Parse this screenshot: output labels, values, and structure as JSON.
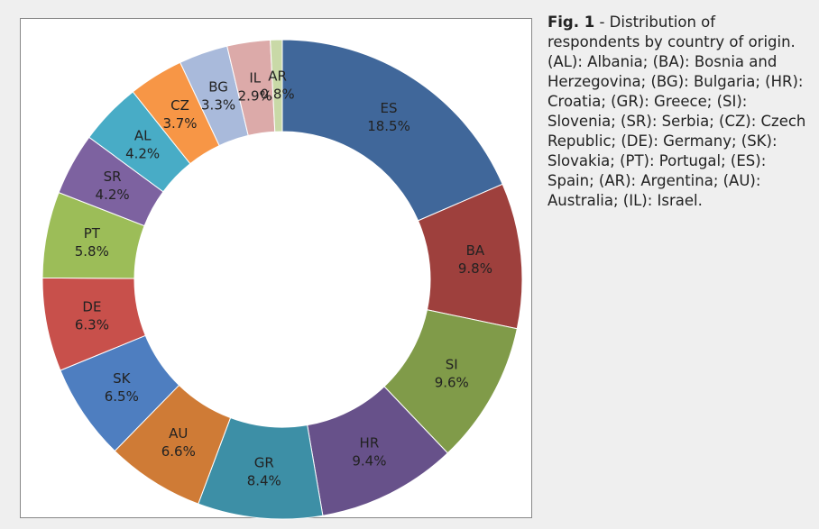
{
  "chart_data": {
    "type": "donut",
    "categories": [
      "ES",
      "BA",
      "SI",
      "HR",
      "GR",
      "AU",
      "SK",
      "DE",
      "PT",
      "SR",
      "AL",
      "CZ",
      "BG",
      "IL",
      "AR"
    ],
    "values": [
      18.5,
      9.8,
      9.6,
      9.4,
      8.4,
      6.6,
      6.5,
      6.3,
      5.8,
      4.2,
      4.2,
      3.7,
      3.3,
      2.9,
      0.8
    ],
    "value_labels": [
      "18.5%",
      "9.8%",
      "9.6%",
      "9.4%",
      "8.4%",
      "6.6%",
      "6.5%",
      "6.3%",
      "5.8%",
      "4.2%",
      "4.2%",
      "3.7%",
      "3.3%",
      "2.9%",
      "0.8%"
    ],
    "colors": [
      "#40679a",
      "#9e403d",
      "#809b49",
      "#67518a",
      "#3d8fa6",
      "#cf7b36",
      "#4e7ec0",
      "#c8504b",
      "#9cbd58",
      "#7d62a0",
      "#48acc6",
      "#f79646",
      "#a9badb",
      "#dcaaa9",
      "#c9d9a7"
    ]
  },
  "caption": {
    "label": "Fig. 1",
    "text": " - Distribution of respondents by country of origin. (AL): Albania; (BA): Bosnia and Herzegovina; (BG): Bulgaria; (HR): Croatia; (GR): Greece; (SI): Slovenia; (SR): Serbia; (CZ): Czech Republic; (DE): Germany; (SK): Slovakia; (PT): Portugal; (ES): Spain; (AR): Argentina; (AU): Australia; (IL): Israel."
  }
}
